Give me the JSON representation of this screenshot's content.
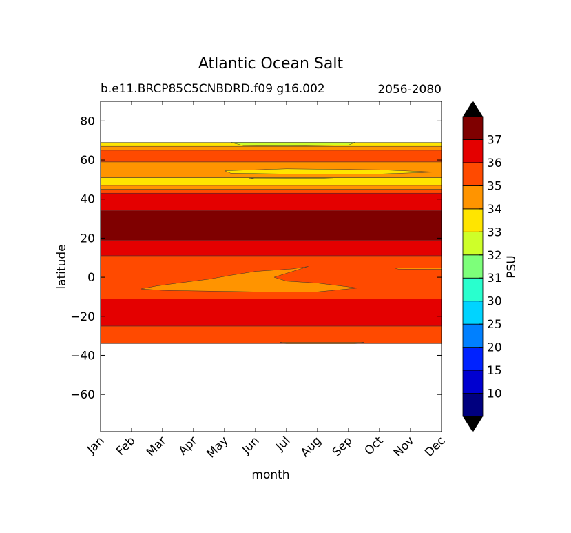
{
  "chart_data": {
    "type": "heatmap",
    "title": "Atlantic Ocean Salt",
    "subtitle_left": "b.e11.BRCP85C5CNBDRD.f09 g16.002",
    "subtitle_right": "2056-2080",
    "xlabel": "month",
    "ylabel": "latitude",
    "colorbar_label": "PSU",
    "x_categories": [
      "Jan",
      "Feb",
      "Mar",
      "Apr",
      "May",
      "Jun",
      "Jul",
      "Aug",
      "Sep",
      "Oct",
      "Nov",
      "Dec"
    ],
    "ylim": [
      -79,
      90
    ],
    "y_ticks": [
      80,
      60,
      40,
      20,
      0,
      -20,
      -40,
      -60
    ],
    "y_tick_labels": [
      "80",
      "60",
      "40",
      "20",
      "0",
      "−20",
      "−40",
      "−60"
    ],
    "grid": false,
    "colorbar": {
      "levels": [
        5,
        10,
        15,
        20,
        25,
        30,
        31,
        32,
        33,
        34,
        35,
        36,
        37,
        38
      ],
      "tick_labels": [
        "10",
        "15",
        "20",
        "25",
        "30",
        "31",
        "32",
        "33",
        "34",
        "35",
        "36",
        "37"
      ],
      "colors": [
        "#00007f",
        "#0000d0",
        "#0022ff",
        "#0080ff",
        "#00d4ff",
        "#29ffce",
        "#7dff7a",
        "#ceff29",
        "#ffe500",
        "#ff9400",
        "#ff4a00",
        "#e40000",
        "#7f0000"
      ],
      "extend": "both"
    },
    "bands": [
      {
        "lat_min": -34,
        "lat_max": -25,
        "range": "35-36"
      },
      {
        "lat_min": -25,
        "lat_max": -11,
        "range": "36-37"
      },
      {
        "lat_min": -11,
        "lat_max": 11,
        "range": "35-36"
      },
      {
        "lat_min": 11,
        "lat_max": 19,
        "range": "36-37"
      },
      {
        "lat_min": 19,
        "lat_max": 34,
        "range": "37-38"
      },
      {
        "lat_min": 34,
        "lat_max": 43,
        "range": "36-37"
      },
      {
        "lat_min": 43,
        "lat_max": 45,
        "range": "35-36"
      },
      {
        "lat_min": 45,
        "lat_max": 47,
        "range": "34-35"
      },
      {
        "lat_min": 47,
        "lat_max": 51,
        "range": "33-34"
      },
      {
        "lat_min": 51,
        "lat_max": 59,
        "range": "34-35"
      },
      {
        "lat_min": 59,
        "lat_max": 65,
        "range": "35-36"
      },
      {
        "lat_min": 65,
        "lat_max": 67,
        "range": "34-35"
      },
      {
        "lat_min": 67,
        "lat_max": 69,
        "range": "33-34"
      }
    ],
    "patches": [
      {
        "region": "equatorial fresher tongue",
        "months": "Feb-Sep",
        "lat_range": [
          -8,
          7
        ],
        "range": "34-35"
      },
      {
        "region": "subpolar pocket",
        "months": "Jun-Dec",
        "lat_range": [
          52,
          56
        ],
        "range": "33-34"
      },
      {
        "region": "Greenland shelf",
        "months": "Jun-Sep",
        "lat_range": [
          67,
          69
        ],
        "range": "32-33"
      }
    ]
  }
}
